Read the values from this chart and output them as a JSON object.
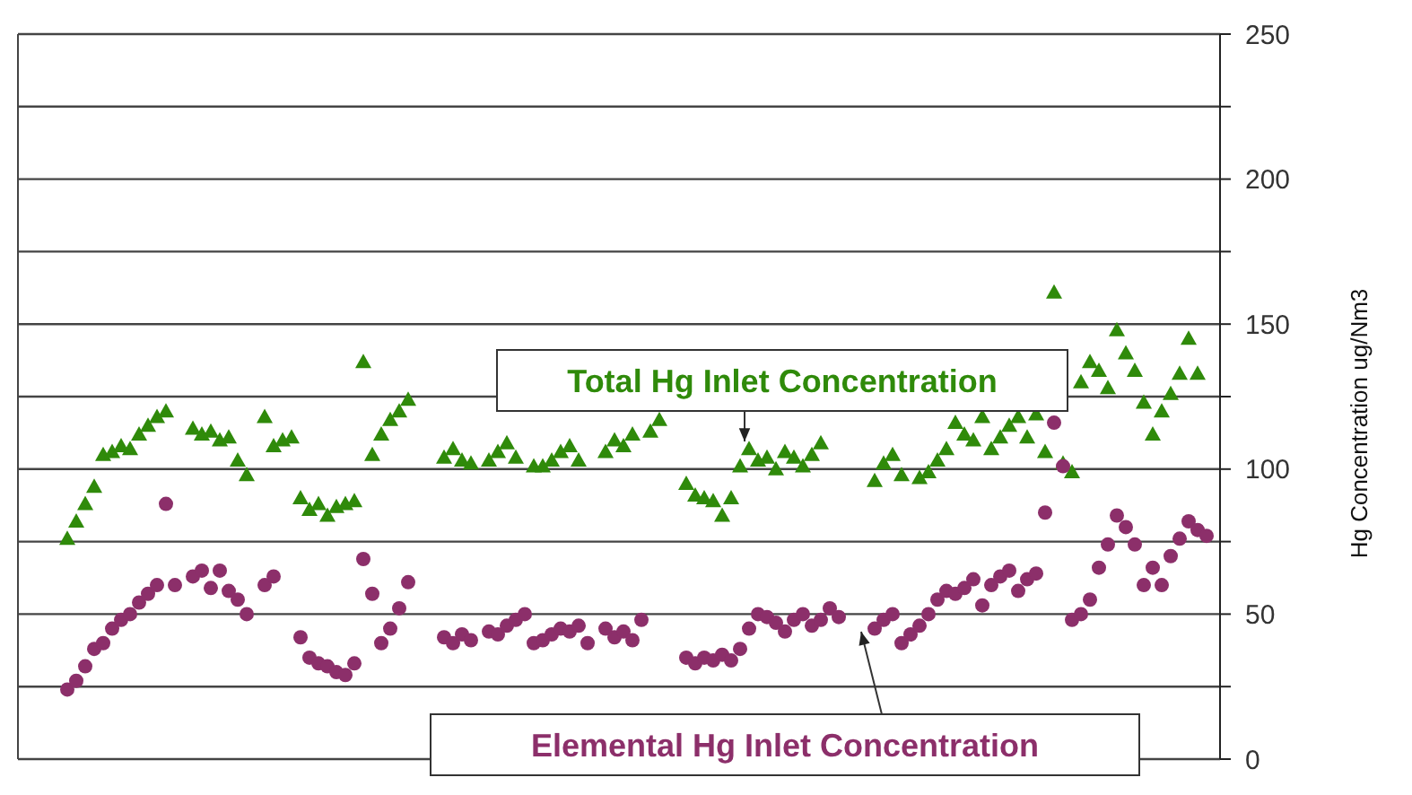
{
  "chart_data": {
    "type": "scatter",
    "ylabel": "Hg Concentration ug/Nm3",
    "categories": [
      null,
      null,
      null,
      null,
      null,
      null,
      null,
      null,
      null,
      null,
      null,
      null,
      null,
      null,
      null,
      null,
      null,
      null,
      null,
      null,
      null,
      null,
      null,
      null,
      null,
      null,
      null,
      null,
      null,
      null,
      null,
      null,
      null,
      null,
      null,
      null,
      null,
      null,
      null,
      null,
      null,
      null,
      null,
      null,
      null,
      null,
      null,
      null,
      null,
      null,
      null,
      null,
      null,
      null,
      null,
      null,
      null,
      null,
      null,
      null,
      null,
      null,
      null,
      null,
      null,
      null,
      null,
      null,
      null,
      null,
      null,
      null,
      null,
      null,
      null,
      null,
      null,
      null,
      null,
      null,
      null,
      null,
      null,
      null,
      null,
      null,
      null,
      null,
      null,
      null,
      null,
      null,
      null,
      null,
      null,
      null,
      null,
      null,
      null,
      null,
      null,
      null,
      null,
      null,
      null,
      null,
      null,
      null,
      null,
      null,
      null,
      null,
      null,
      null,
      null,
      null,
      null,
      null,
      null,
      null,
      null,
      null,
      null,
      null,
      null,
      null,
      null,
      null,
      null,
      null,
      null,
      null,
      null,
      null
    ],
    "series": [
      {
        "color": "#2f8a0a",
        "marker": "triangle",
        "values": [
          null,
          null,
          null,
          null,
          null,
          76,
          82,
          88,
          94,
          105,
          106,
          108,
          107,
          112,
          115,
          118,
          120,
          null,
          null,
          114,
          112,
          113,
          110,
          111,
          103,
          98,
          null,
          118,
          108,
          110,
          111,
          90,
          86,
          88,
          84,
          87,
          88,
          89,
          137,
          105,
          112,
          117,
          120,
          124,
          null,
          null,
          null,
          104,
          107,
          103,
          102,
          null,
          103,
          106,
          109,
          104,
          null,
          101,
          101,
          103,
          106,
          108,
          103,
          null,
          null,
          106,
          110,
          108,
          112,
          null,
          113,
          117,
          null,
          null,
          95,
          91,
          90,
          89,
          84,
          90,
          101,
          107,
          103,
          104,
          100,
          106,
          104,
          101,
          105,
          109,
          null,
          null,
          null,
          null,
          null,
          96,
          102,
          105,
          98,
          null,
          97,
          99,
          103,
          107,
          116,
          112,
          110,
          118,
          107,
          111,
          115,
          118,
          111,
          119,
          106,
          161,
          102,
          99,
          130,
          137,
          134,
          128,
          148,
          140,
          134,
          123,
          112,
          120,
          126,
          133,
          145,
          133,
          null,
          null
        ]
      },
      {
        "color": "#8c2f6a",
        "marker": "circle",
        "values": [
          null,
          null,
          null,
          null,
          null,
          24,
          27,
          32,
          38,
          40,
          45,
          48,
          50,
          54,
          57,
          60,
          88,
          60,
          null,
          63,
          65,
          59,
          65,
          58,
          55,
          50,
          null,
          60,
          63,
          null,
          null,
          42,
          35,
          33,
          32,
          30,
          29,
          33,
          69,
          57,
          40,
          45,
          52,
          61,
          null,
          null,
          null,
          42,
          40,
          43,
          41,
          null,
          44,
          43,
          46,
          48,
          50,
          40,
          41,
          43,
          45,
          44,
          46,
          40,
          null,
          45,
          42,
          44,
          41,
          48,
          null,
          null,
          null,
          null,
          35,
          33,
          35,
          34,
          36,
          34,
          38,
          45,
          50,
          49,
          47,
          44,
          48,
          50,
          46,
          48,
          52,
          49,
          null,
          null,
          null,
          45,
          48,
          50,
          40,
          43,
          46,
          50,
          55,
          58,
          57,
          59,
          62,
          53,
          60,
          63,
          65,
          58,
          62,
          64,
          85,
          116,
          101,
          48,
          50,
          55,
          66,
          74,
          84,
          80,
          74,
          60,
          66,
          60,
          70,
          76,
          82,
          79,
          77,
          null
        ]
      }
    ],
    "ylim": [
      0,
      250
    ],
    "yticks": [
      0,
      {
        "value": 25,
        "label": null
      },
      50,
      {
        "value": 75,
        "label": null
      },
      100,
      {
        "value": 125,
        "label": null
      },
      150,
      {
        "value": 175,
        "label": null
      },
      200,
      {
        "value": 225,
        "label": null
      },
      250
    ],
    "grid": "y",
    "tick_labels": "y",
    "annotations": [
      "Total Hg Inlet Concentration",
      "Elemental Hg Inlet Concentration"
    ]
  }
}
